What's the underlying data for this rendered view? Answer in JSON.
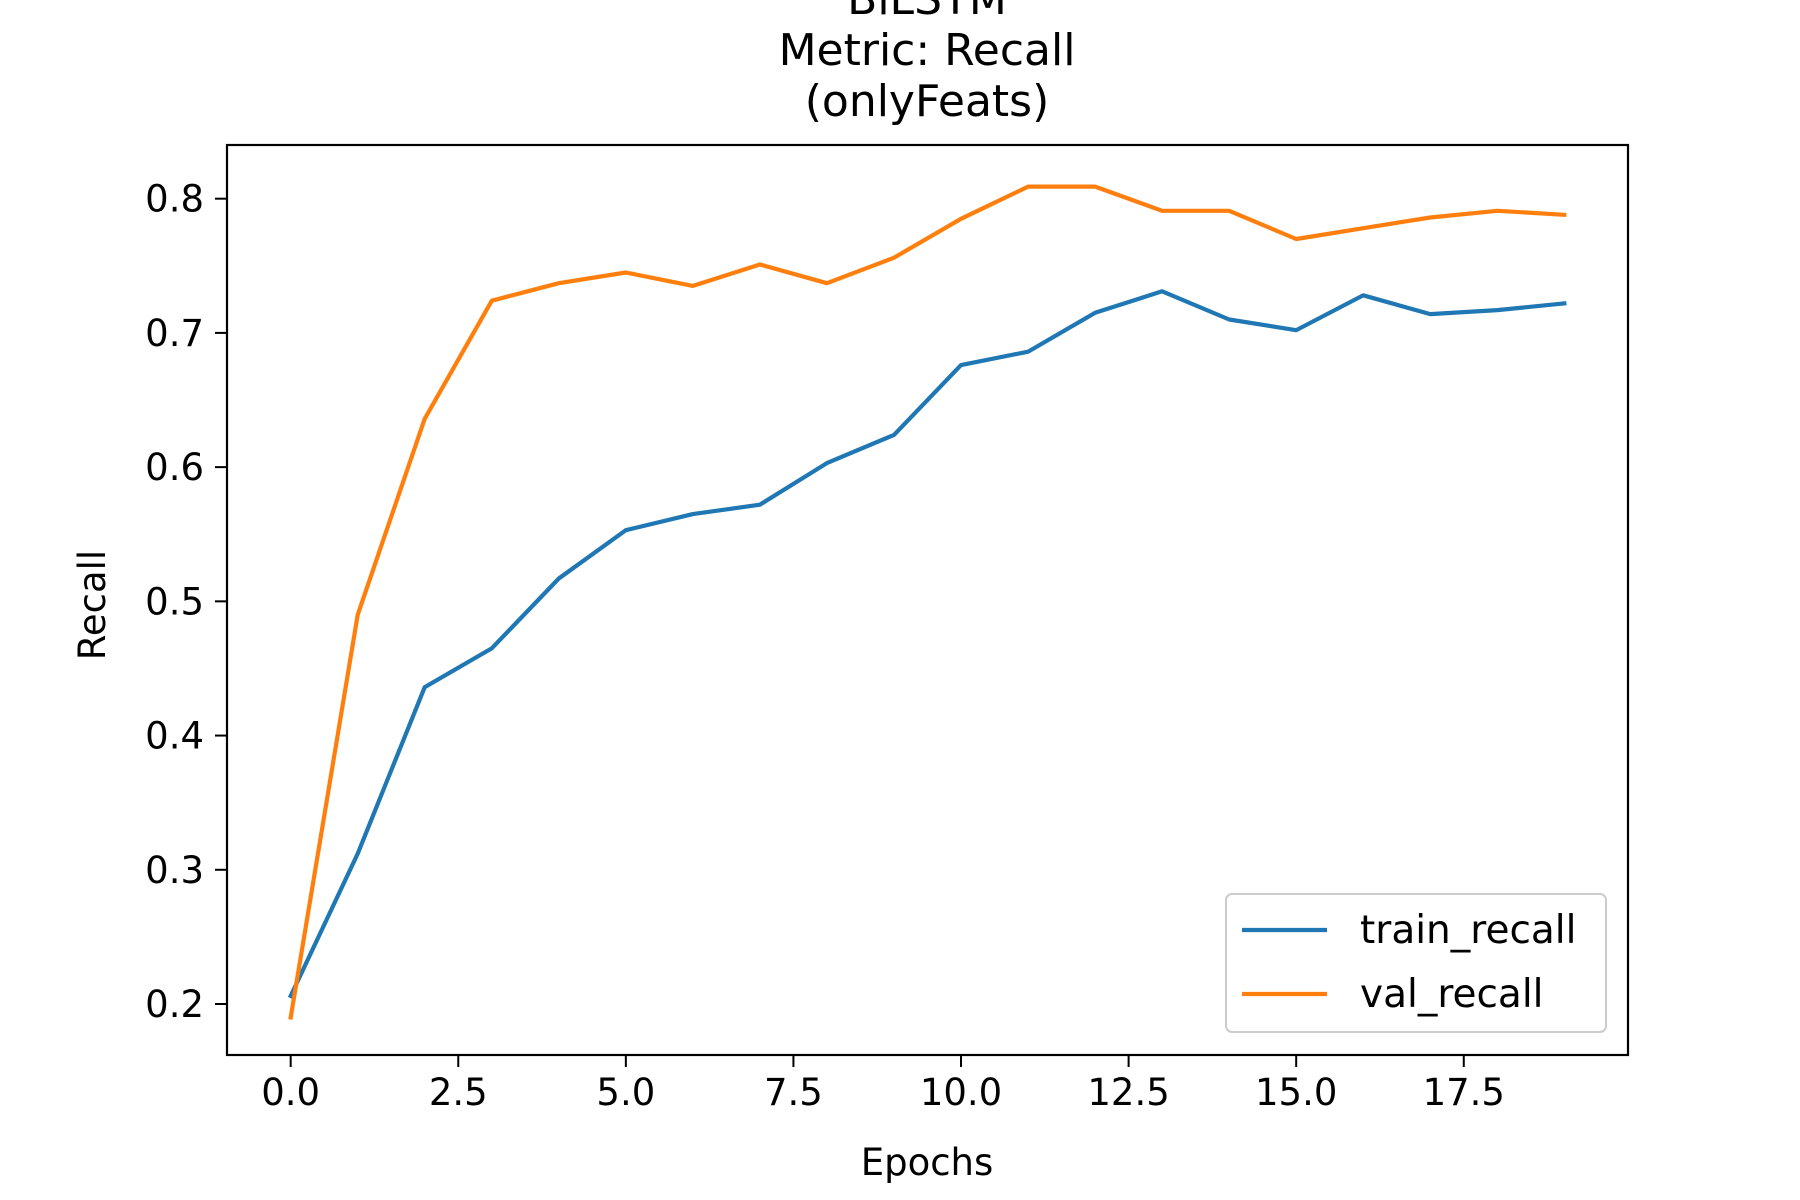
{
  "chart_data": {
    "type": "line",
    "title_lines": [
      "BiLSTM",
      "Metric: Recall",
      "(onlyFeats)"
    ],
    "xlabel": "Epochs",
    "ylabel": "Recall",
    "xlim": [
      -0.95,
      19.95
    ],
    "ylim": [
      0.162,
      0.84
    ],
    "xticks": [
      0.0,
      2.5,
      5.0,
      7.5,
      10.0,
      12.5,
      15.0,
      17.5
    ],
    "xtick_labels": [
      "0.0",
      "2.5",
      "5.0",
      "7.5",
      "10.0",
      "12.5",
      "15.0",
      "17.5"
    ],
    "yticks": [
      0.2,
      0.3,
      0.4,
      0.5,
      0.6,
      0.7,
      0.8
    ],
    "ytick_labels": [
      "0.2",
      "0.3",
      "0.4",
      "0.5",
      "0.6",
      "0.7",
      "0.8"
    ],
    "grid": false,
    "legend_position": "lower-right",
    "x": [
      0,
      1,
      2,
      3,
      4,
      5,
      6,
      7,
      8,
      9,
      10,
      11,
      12,
      13,
      14,
      15,
      16,
      17,
      18,
      19
    ],
    "series": [
      {
        "name": "train_recall",
        "color": "#1f77b4",
        "values": [
          0.206,
          0.312,
          0.436,
          0.465,
          0.517,
          0.553,
          0.565,
          0.572,
          0.603,
          0.624,
          0.676,
          0.686,
          0.715,
          0.731,
          0.71,
          0.702,
          0.728,
          0.714,
          0.717,
          0.722
        ]
      },
      {
        "name": "val_recall",
        "color": "#ff7f0e",
        "values": [
          0.19,
          0.49,
          0.636,
          0.724,
          0.737,
          0.745,
          0.735,
          0.751,
          0.737,
          0.756,
          0.785,
          0.809,
          0.809,
          0.791,
          0.791,
          0.77,
          0.778,
          0.786,
          0.791,
          0.788
        ]
      }
    ]
  }
}
